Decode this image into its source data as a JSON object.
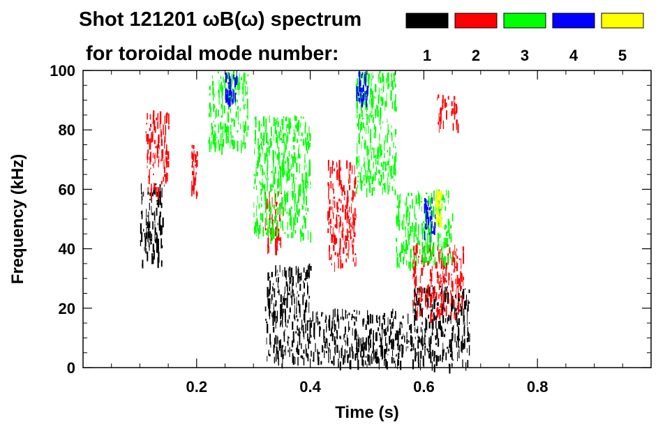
{
  "chart_data": {
    "type": "heatmap",
    "title_line1": "Shot 121201 ωB(ω) spectrum",
    "title_line2": "for toroidal mode number:",
    "xlabel": "Time (s)",
    "ylabel": "Frequency (kHz)",
    "xlim": [
      0.0,
      1.0
    ],
    "ylim": [
      0,
      100
    ],
    "x_ticks": [
      {
        "value": 0.2,
        "label": "0.2"
      },
      {
        "value": 0.4,
        "label": "0.4"
      },
      {
        "value": 0.6,
        "label": "0.6"
      },
      {
        "value": 0.8,
        "label": "0.8"
      }
    ],
    "y_ticks": [
      {
        "value": 0,
        "label": "0"
      },
      {
        "value": 20,
        "label": "20"
      },
      {
        "value": 40,
        "label": "40"
      },
      {
        "value": 60,
        "label": "60"
      },
      {
        "value": 80,
        "label": "80"
      },
      {
        "value": 100,
        "label": "100"
      }
    ],
    "legend": {
      "placement": "top-right",
      "entries": [
        {
          "label": "1",
          "color": "#000000"
        },
        {
          "label": "2",
          "color": "#ff0000"
        },
        {
          "label": "3",
          "color": "#00ff00"
        },
        {
          "label": "4",
          "color": "#0000ff"
        },
        {
          "label": "5",
          "color": "#ffff00"
        }
      ]
    },
    "grid": false,
    "mode_regions": [
      {
        "mode": 1,
        "t": [
          0.1,
          0.14
        ],
        "f": [
          35,
          62
        ]
      },
      {
        "mode": 1,
        "t": [
          0.32,
          0.4
        ],
        "f": [
          3,
          35
        ]
      },
      {
        "mode": 1,
        "t": [
          0.58,
          0.68
        ],
        "f": [
          1,
          28
        ]
      },
      {
        "mode": 1,
        "t": [
          0.4,
          0.58
        ],
        "f": [
          2,
          20
        ]
      },
      {
        "mode": 2,
        "t": [
          0.11,
          0.15
        ],
        "f": [
          60,
          87
        ]
      },
      {
        "mode": 2,
        "t": [
          0.19,
          0.2
        ],
        "f": [
          58,
          75
        ]
      },
      {
        "mode": 2,
        "t": [
          0.32,
          0.35
        ],
        "f": [
          40,
          60
        ]
      },
      {
        "mode": 2,
        "t": [
          0.43,
          0.48
        ],
        "f": [
          35,
          70
        ]
      },
      {
        "mode": 2,
        "t": [
          0.58,
          0.67
        ],
        "f": [
          18,
          42
        ]
      },
      {
        "mode": 2,
        "t": [
          0.62,
          0.66
        ],
        "f": [
          82,
          92
        ]
      },
      {
        "mode": 3,
        "t": [
          0.22,
          0.29
        ],
        "f": [
          75,
          100
        ]
      },
      {
        "mode": 3,
        "t": [
          0.3,
          0.4
        ],
        "f": [
          45,
          85
        ]
      },
      {
        "mode": 3,
        "t": [
          0.48,
          0.55
        ],
        "f": [
          60,
          100
        ]
      },
      {
        "mode": 3,
        "t": [
          0.55,
          0.65
        ],
        "f": [
          35,
          60
        ]
      },
      {
        "mode": 4,
        "t": [
          0.25,
          0.27
        ],
        "f": [
          90,
          100
        ]
      },
      {
        "mode": 4,
        "t": [
          0.48,
          0.5
        ],
        "f": [
          90,
          100
        ]
      },
      {
        "mode": 4,
        "t": [
          0.6,
          0.62
        ],
        "f": [
          45,
          58
        ]
      },
      {
        "mode": 5,
        "t": [
          0.62,
          0.63
        ],
        "f": [
          50,
          60
        ]
      }
    ]
  }
}
